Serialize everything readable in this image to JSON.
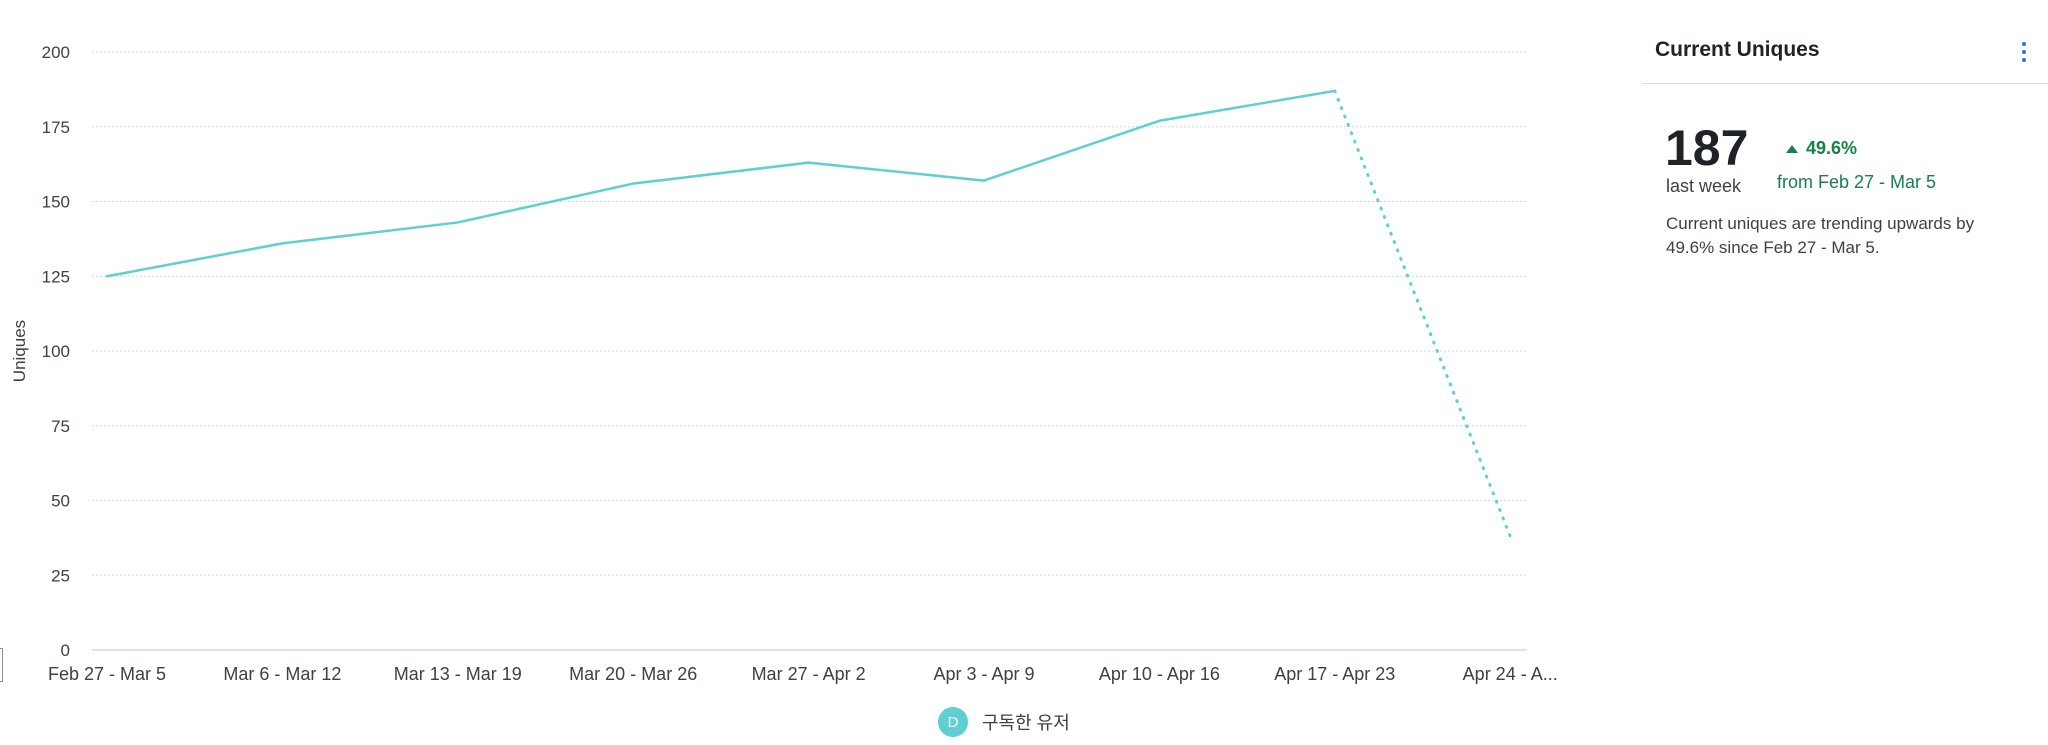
{
  "chart_data": {
    "type": "line",
    "ylabel": "Uniques",
    "ylim": [
      0,
      200
    ],
    "yticks": [
      0,
      25,
      50,
      75,
      100,
      125,
      150,
      175,
      200
    ],
    "grid": true,
    "categories": [
      "Feb 27 - Mar 5",
      "Mar 6 - Mar 12",
      "Mar 13 - Mar 19",
      "Mar 20 - Mar 26",
      "Mar 27 - Apr 2",
      "Apr 3 - Apr 9",
      "Apr 10 - Apr 16",
      "Apr 17 - Apr 23",
      "Apr 24 - A..."
    ],
    "series": [
      {
        "name": "구독한 유저",
        "values": [
          125,
          136,
          143,
          156,
          163,
          157,
          177,
          187,
          38
        ],
        "color": "#5fcfd1",
        "incomplete_last_period": true
      }
    ],
    "legend": {
      "position": "bottom",
      "badge": "D"
    }
  },
  "panel": {
    "title": "Current Uniques",
    "value": "187",
    "value_sub": "last week",
    "delta": "49.6%",
    "delta_direction": "up",
    "delta_color": "#16804b",
    "from_text": "from Feb 27 - Mar 5",
    "description": "Current uniques are trending upwards by 49.6% since Feb 27 - Mar 5."
  }
}
